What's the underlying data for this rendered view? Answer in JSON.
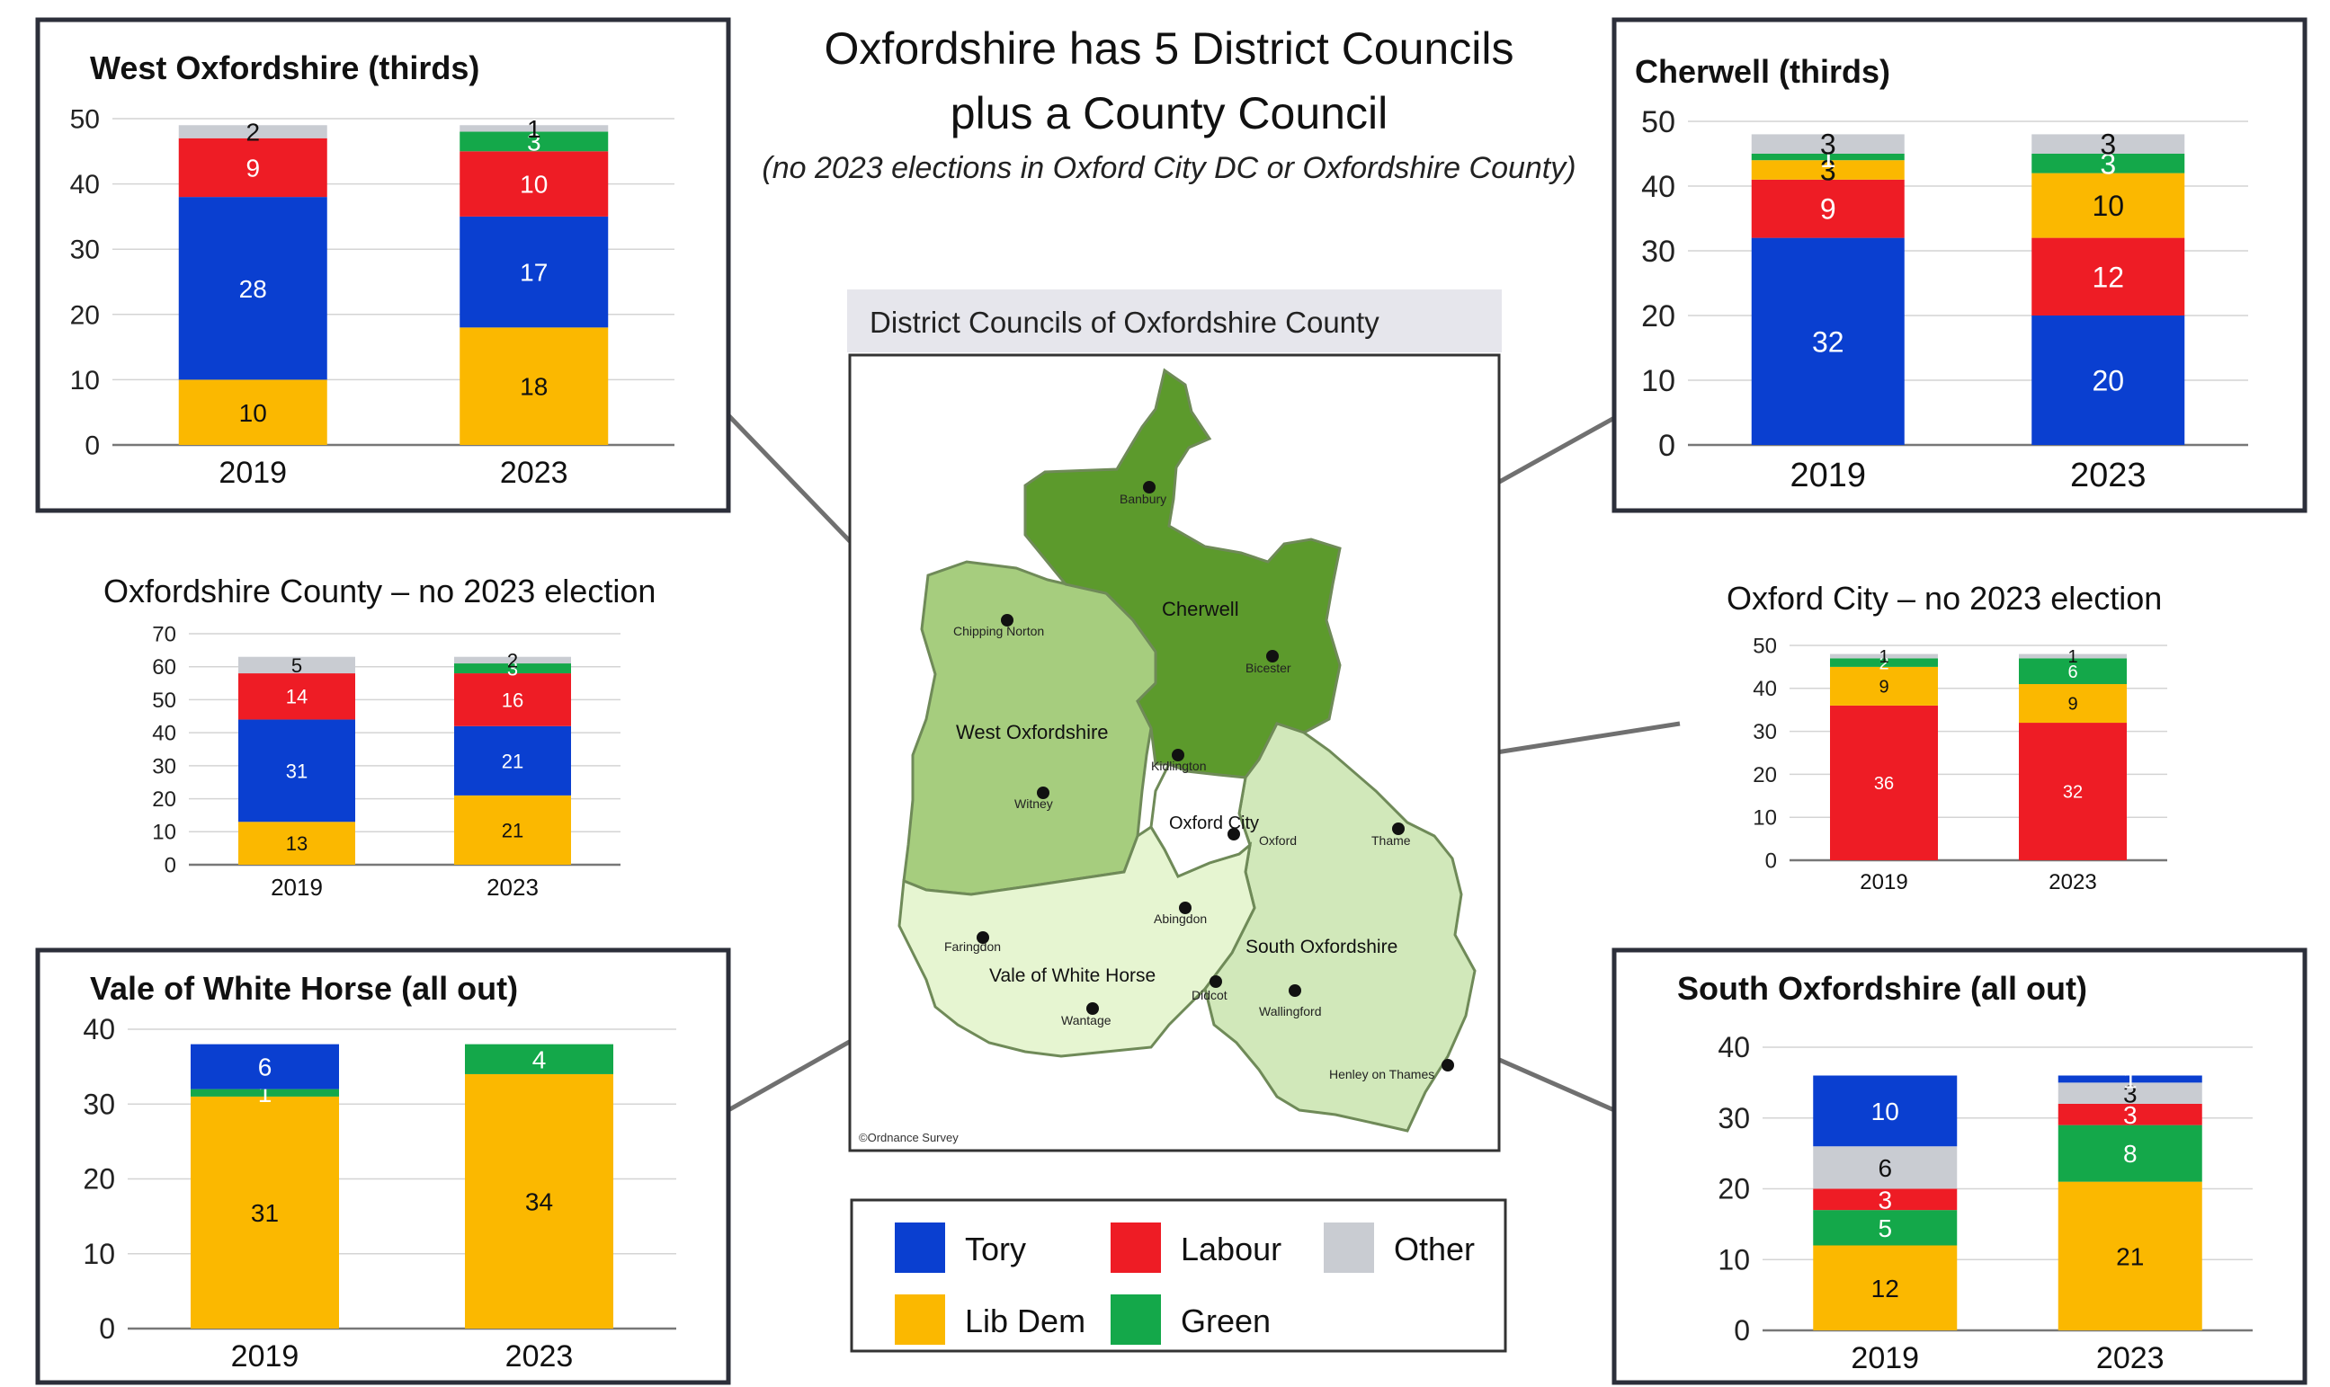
{
  "header": {
    "title_line1": "Oxfordshire has 5 District Councils",
    "title_line2": "plus a County Council",
    "subtitle": "(no 2023 elections in Oxford City DC or Oxfordshire County)"
  },
  "colors": {
    "tory": "#0a3fd0",
    "labour": "#ee1c25",
    "libdem": "#fbb800",
    "green": "#14a84a",
    "other": "#c9ccd2",
    "box_border": "#2c2f3a",
    "leader_line": "#707070"
  },
  "map": {
    "title": "District Councils of Oxfordshire County",
    "credit": "©Ordnance Survey",
    "districts": [
      {
        "name": "Cherwell",
        "fill": "#5c9a2c"
      },
      {
        "name": "West Oxfordshire",
        "fill": "#a6cd7e"
      },
      {
        "name": "Oxford City",
        "fill": "#ffffff"
      },
      {
        "name": "Vale of White Horse",
        "fill": "#e6f5d1"
      },
      {
        "name": "South Oxfordshire",
        "fill": "#d1e8ba"
      }
    ],
    "towns": [
      "Banbury",
      "Chipping Norton",
      "Bicester",
      "Kidlington",
      "Witney",
      "Oxford",
      "Thame",
      "Faringdon",
      "Abingdon",
      "Didcot",
      "Wantage",
      "Wallingford",
      "Henley on Thames"
    ]
  },
  "legend": {
    "items": [
      {
        "label": "Tory",
        "color": "#0a3fd0"
      },
      {
        "label": "Labour",
        "color": "#ee1c25"
      },
      {
        "label": "Other",
        "color": "#c9ccd2"
      },
      {
        "label": "Lib Dem",
        "color": "#fbb800"
      },
      {
        "label": "Green",
        "color": "#14a84a"
      }
    ]
  },
  "chart_data": [
    {
      "id": "west-oxfordshire",
      "type": "bar",
      "stacked": true,
      "title": "West Oxfordshire (thirds)",
      "categories": [
        "2019",
        "2023"
      ],
      "ylim": [
        0,
        50
      ],
      "yticks": [
        0,
        10,
        20,
        30,
        40,
        50
      ],
      "boxed": true,
      "series": [
        {
          "name": "Lib Dem",
          "color": "#fbb800",
          "values": [
            10,
            18
          ]
        },
        {
          "name": "Tory",
          "color": "#0a3fd0",
          "values": [
            28,
            17
          ]
        },
        {
          "name": "Labour",
          "color": "#ee1c25",
          "values": [
            9,
            10
          ]
        },
        {
          "name": "Green",
          "color": "#14a84a",
          "values": [
            0,
            3
          ]
        },
        {
          "name": "Other",
          "color": "#c9ccd2",
          "values": [
            2,
            1
          ]
        }
      ]
    },
    {
      "id": "cherwell",
      "type": "bar",
      "stacked": true,
      "title": "Cherwell (thirds)",
      "categories": [
        "2019",
        "2023"
      ],
      "ylim": [
        0,
        50
      ],
      "yticks": [
        0,
        10,
        20,
        30,
        40,
        50
      ],
      "boxed": true,
      "series": [
        {
          "name": "Tory",
          "color": "#0a3fd0",
          "values": [
            32,
            20
          ]
        },
        {
          "name": "Labour",
          "color": "#ee1c25",
          "values": [
            9,
            12
          ]
        },
        {
          "name": "Lib Dem",
          "color": "#fbb800",
          "values": [
            3,
            10
          ]
        },
        {
          "name": "Green",
          "color": "#14a84a",
          "values": [
            1,
            3
          ]
        },
        {
          "name": "Other",
          "color": "#c9ccd2",
          "values": [
            3,
            3
          ]
        }
      ]
    },
    {
      "id": "oxfordshire-county",
      "type": "bar",
      "stacked": true,
      "title": "Oxfordshire County – no 2023 election",
      "categories": [
        "2019",
        "2023"
      ],
      "ylim": [
        0,
        70
      ],
      "yticks": [
        0,
        10,
        20,
        30,
        40,
        50,
        60,
        70
      ],
      "boxed": false,
      "series": [
        {
          "name": "Lib Dem",
          "color": "#fbb800",
          "values": [
            13,
            21
          ]
        },
        {
          "name": "Tory",
          "color": "#0a3fd0",
          "values": [
            31,
            21
          ]
        },
        {
          "name": "Labour",
          "color": "#ee1c25",
          "values": [
            14,
            16
          ]
        },
        {
          "name": "Green",
          "color": "#14a84a",
          "values": [
            0,
            3
          ]
        },
        {
          "name": "Other",
          "color": "#c9ccd2",
          "values": [
            5,
            2
          ]
        }
      ]
    },
    {
      "id": "oxford-city",
      "type": "bar",
      "stacked": true,
      "title": "Oxford City – no 2023 election",
      "categories": [
        "2019",
        "2023"
      ],
      "ylim": [
        0,
        50
      ],
      "yticks": [
        0,
        10,
        20,
        30,
        40,
        50
      ],
      "boxed": false,
      "series": [
        {
          "name": "Labour",
          "color": "#ee1c25",
          "values": [
            36,
            32
          ]
        },
        {
          "name": "Lib Dem",
          "color": "#fbb800",
          "values": [
            9,
            9
          ]
        },
        {
          "name": "Green",
          "color": "#14a84a",
          "values": [
            2,
            6
          ]
        },
        {
          "name": "Other",
          "color": "#c9ccd2",
          "values": [
            1,
            1
          ]
        }
      ]
    },
    {
      "id": "vale-of-white-horse",
      "type": "bar",
      "stacked": true,
      "title": "Vale of White Horse (all out)",
      "categories": [
        "2019",
        "2023"
      ],
      "ylim": [
        0,
        40
      ],
      "yticks": [
        0,
        10,
        20,
        30,
        40
      ],
      "boxed": true,
      "series": [
        {
          "name": "Lib Dem",
          "color": "#fbb800",
          "values": [
            31,
            34
          ]
        },
        {
          "name": "Green",
          "color": "#14a84a",
          "values": [
            1,
            4
          ]
        },
        {
          "name": "Tory",
          "color": "#0a3fd0",
          "values": [
            6,
            0
          ]
        }
      ]
    },
    {
      "id": "south-oxfordshire",
      "type": "bar",
      "stacked": true,
      "title": "South Oxfordshire (all out)",
      "categories": [
        "2019",
        "2023"
      ],
      "ylim": [
        0,
        40
      ],
      "yticks": [
        0,
        10,
        20,
        30,
        40
      ],
      "boxed": true,
      "series": [
        {
          "name": "Lib Dem",
          "color": "#fbb800",
          "values": [
            12,
            21
          ]
        },
        {
          "name": "Green",
          "color": "#14a84a",
          "values": [
            5,
            8
          ]
        },
        {
          "name": "Labour",
          "color": "#ee1c25",
          "values": [
            3,
            3
          ]
        },
        {
          "name": "Other",
          "color": "#c9ccd2",
          "values": [
            6,
            3
          ]
        },
        {
          "name": "Tory",
          "color": "#0a3fd0",
          "values": [
            10,
            1
          ]
        }
      ]
    }
  ]
}
